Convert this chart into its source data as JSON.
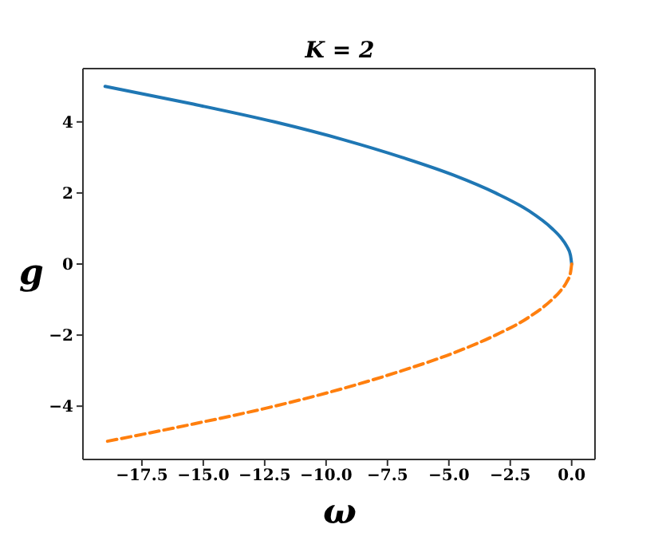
{
  "chart_data": {
    "type": "line",
    "title": "K = 2",
    "xlabel": "ω",
    "ylabel": "g",
    "series": [
      {
        "color": "#1f77b4",
        "line_style": "solid",
        "x": [
          -19,
          -15.4,
          -12.1,
          -9.3,
          -6.9,
          -4.8,
          -3.1,
          -1.75,
          -0.8,
          -0.45,
          -0.2,
          -0.05,
          0
        ],
        "values": [
          5,
          4.5,
          4,
          3.5,
          3,
          2.5,
          2,
          1.5,
          1,
          0.75,
          0.5,
          0.25,
          0
        ]
      },
      {
        "color": "#ff7f0e",
        "line_style": "dashed",
        "x": [
          0,
          -0.05,
          -0.2,
          -0.45,
          -0.8,
          -1.75,
          -3.1,
          -4.8,
          -6.9,
          -9.3,
          -12.1,
          -15.4,
          -19
        ],
        "values": [
          0,
          -0.25,
          -0.5,
          -0.75,
          -1,
          -1.5,
          -2,
          -2.5,
          -3,
          -3.5,
          -4,
          -4.5,
          -5
        ]
      }
    ],
    "xlim": [
      -19.9,
      0.95
    ],
    "xticks": [
      {
        "value": -17.5,
        "label": "−17.5"
      },
      {
        "value": -15,
        "label": "−15.0"
      },
      {
        "value": -12.5,
        "label": "−12.5"
      },
      {
        "value": -10,
        "label": "−10.0"
      },
      {
        "value": -7.5,
        "label": "−7.5"
      },
      {
        "value": -5,
        "label": "−5.0"
      },
      {
        "value": -2.5,
        "label": "−2.5"
      },
      {
        "value": 0,
        "label": "0.0"
      }
    ],
    "ylim": [
      -5.5,
      5.5
    ],
    "yticks": [
      {
        "value": -4,
        "label": "−4"
      },
      {
        "value": -2,
        "label": "−2"
      },
      0,
      2,
      4
    ],
    "grid": false,
    "legend": false,
    "marker": "none"
  }
}
